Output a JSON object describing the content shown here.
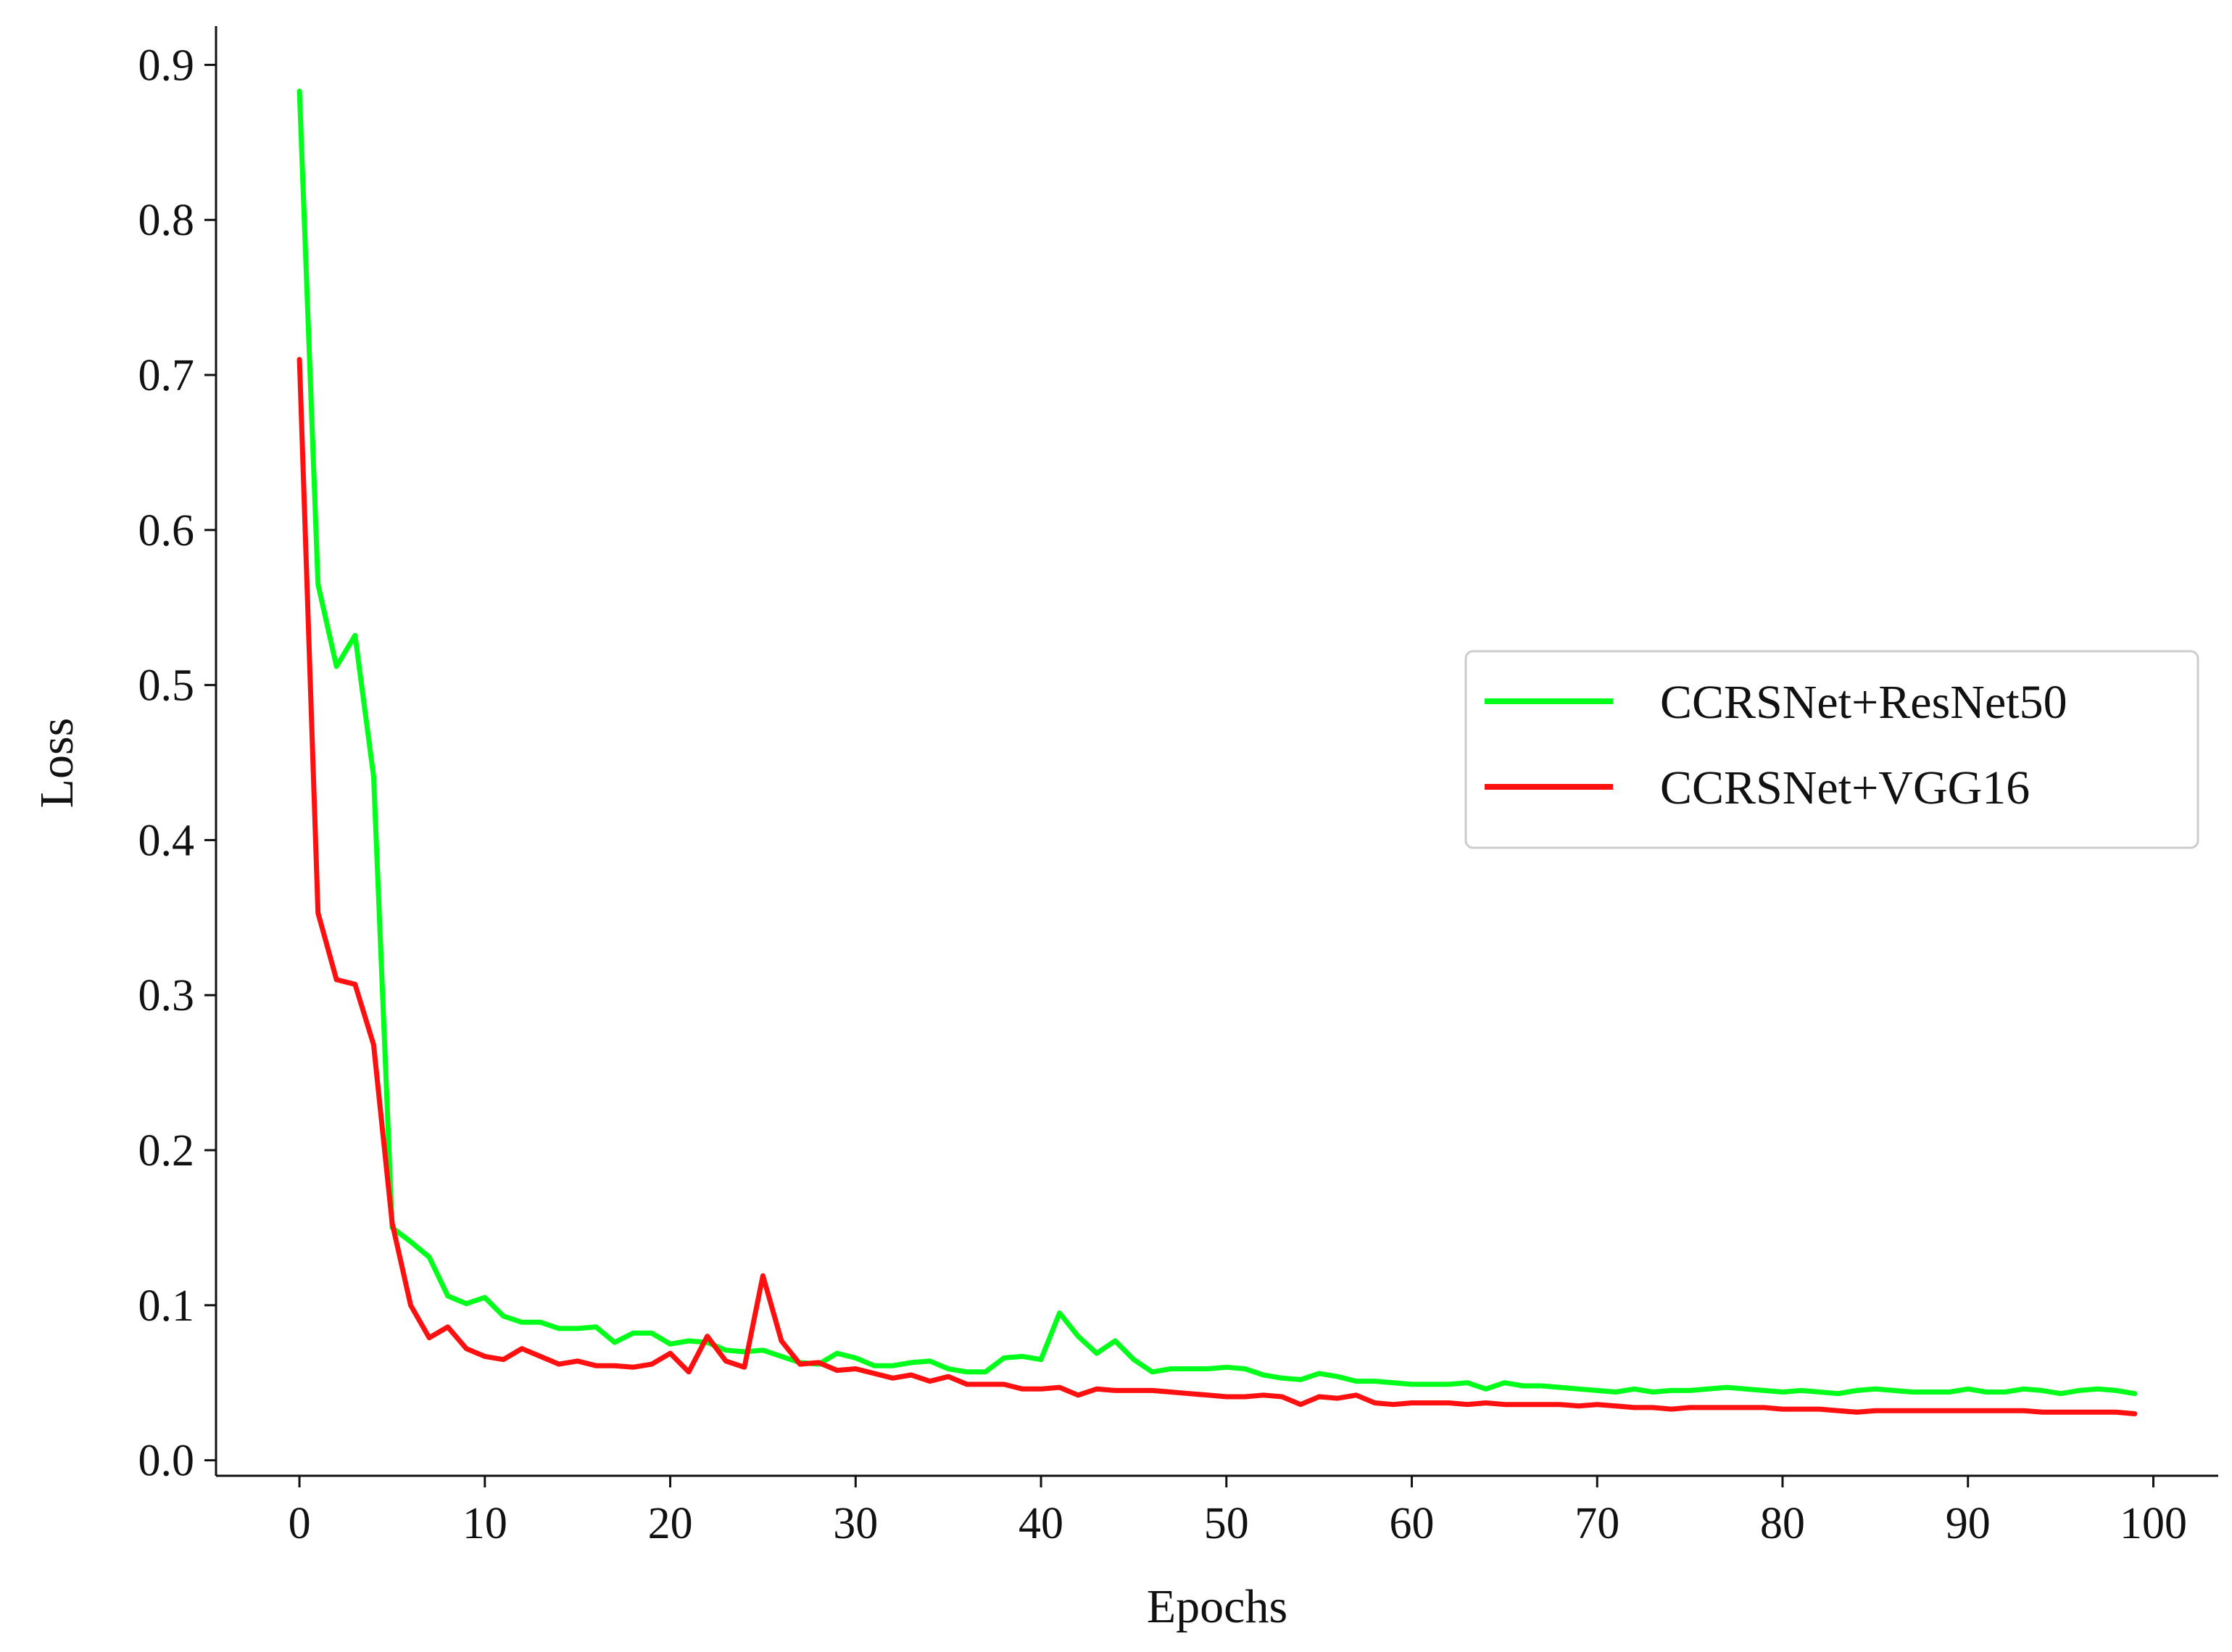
{
  "chart_data": {
    "type": "line",
    "xlabel": "Epochs",
    "ylabel": "Loss",
    "xlim": [
      -4.5,
      103.5
    ],
    "ylim": [
      -0.01,
      0.925
    ],
    "xticks": [
      0,
      10,
      20,
      30,
      40,
      50,
      60,
      70,
      80,
      90,
      100
    ],
    "yticks": [
      0.0,
      0.1,
      0.2,
      0.3,
      0.4,
      0.5,
      0.6,
      0.7,
      0.8,
      0.9
    ],
    "xtick_labels": [
      "0",
      "10",
      "20",
      "30",
      "40",
      "50",
      "60",
      "70",
      "80",
      "90",
      "100"
    ],
    "ytick_labels": [
      "0.0",
      "0.1",
      "0.2",
      "0.3",
      "0.4",
      "0.5",
      "0.6",
      "0.7",
      "0.8",
      "0.9"
    ],
    "grid": false,
    "legend_position": "center-right",
    "series": [
      {
        "name": "CCRSNet+ResNet50",
        "color": "#00ff1a",
        "values": [
          0.883,
          0.565,
          0.512,
          0.532,
          0.441,
          0.15,
          0.141,
          0.131,
          0.106,
          0.101,
          0.105,
          0.093,
          0.089,
          0.089,
          0.085,
          0.085,
          0.086,
          0.076,
          0.082,
          0.082,
          0.075,
          0.077,
          0.076,
          0.071,
          0.07,
          0.071,
          0.067,
          0.063,
          0.062,
          0.069,
          0.066,
          0.061,
          0.061,
          0.063,
          0.064,
          0.059,
          0.057,
          0.057,
          0.066,
          0.067,
          0.065,
          0.095,
          0.08,
          0.069,
          0.077,
          0.065,
          0.057,
          0.059,
          0.059,
          0.059,
          0.06,
          0.059,
          0.055,
          0.053,
          0.052,
          0.056,
          0.054,
          0.051,
          0.051,
          0.05,
          0.049,
          0.049,
          0.049,
          0.05,
          0.046,
          0.05,
          0.048,
          0.048,
          0.047,
          0.046,
          0.045,
          0.044,
          0.046,
          0.044,
          0.045,
          0.045,
          0.046,
          0.047,
          0.046,
          0.045,
          0.044,
          0.045,
          0.044,
          0.043,
          0.045,
          0.046,
          0.045,
          0.044,
          0.044,
          0.044,
          0.046,
          0.044,
          0.044,
          0.046,
          0.045,
          0.043,
          0.045,
          0.046,
          0.045,
          0.043
        ]
      },
      {
        "name": "CCRSNet+VGG16",
        "color": "#ff1010",
        "values": [
          0.71,
          0.353,
          0.31,
          0.307,
          0.268,
          0.153,
          0.1,
          0.079,
          0.086,
          0.072,
          0.067,
          0.065,
          0.072,
          0.067,
          0.062,
          0.064,
          0.061,
          0.061,
          0.06,
          0.062,
          0.069,
          0.057,
          0.08,
          0.064,
          0.06,
          0.119,
          0.077,
          0.062,
          0.063,
          0.058,
          0.059,
          0.056,
          0.053,
          0.055,
          0.051,
          0.054,
          0.049,
          0.049,
          0.049,
          0.046,
          0.046,
          0.047,
          0.042,
          0.046,
          0.045,
          0.045,
          0.045,
          0.044,
          0.043,
          0.042,
          0.041,
          0.041,
          0.042,
          0.041,
          0.036,
          0.041,
          0.04,
          0.042,
          0.037,
          0.036,
          0.037,
          0.037,
          0.037,
          0.036,
          0.037,
          0.036,
          0.036,
          0.036,
          0.036,
          0.035,
          0.036,
          0.035,
          0.034,
          0.034,
          0.033,
          0.034,
          0.034,
          0.034,
          0.034,
          0.034,
          0.033,
          0.033,
          0.033,
          0.032,
          0.031,
          0.032,
          0.032,
          0.032,
          0.032,
          0.032,
          0.032,
          0.032,
          0.032,
          0.032,
          0.031,
          0.031,
          0.031,
          0.031,
          0.031,
          0.03
        ]
      }
    ]
  }
}
